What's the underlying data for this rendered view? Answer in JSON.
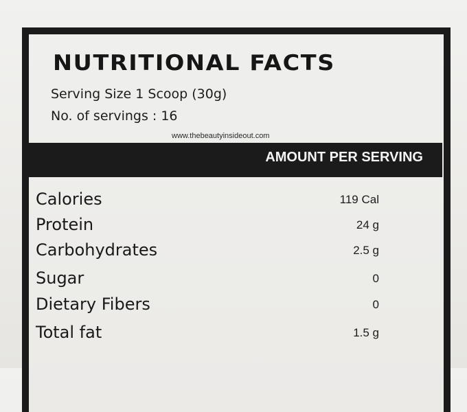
{
  "label": {
    "title": "NUTRITIONAL FACTS",
    "serving_size": "Serving Size 1 Scoop (30g)",
    "servings_count": "No. of servings : 16",
    "watermark": "www.thebeautyinsideout.com",
    "amount_header": "AMOUNT PER SERVING",
    "rows": [
      {
        "nutrient": "Calories",
        "amount": "119 Cal"
      },
      {
        "nutrient": "Protein",
        "amount": "24 g"
      },
      {
        "nutrient": "Carbohydrates",
        "amount": "2.5 g"
      },
      {
        "nutrient": "Sugar",
        "amount": "0"
      },
      {
        "nutrient": "Dietary Fibers",
        "amount": "0"
      },
      {
        "nutrient": "Total fat",
        "amount": "1.5 g"
      }
    ]
  },
  "colors": {
    "ink": "#1b1b1b",
    "paper": "#eeeeec",
    "band_text": "#f4f4f4"
  }
}
